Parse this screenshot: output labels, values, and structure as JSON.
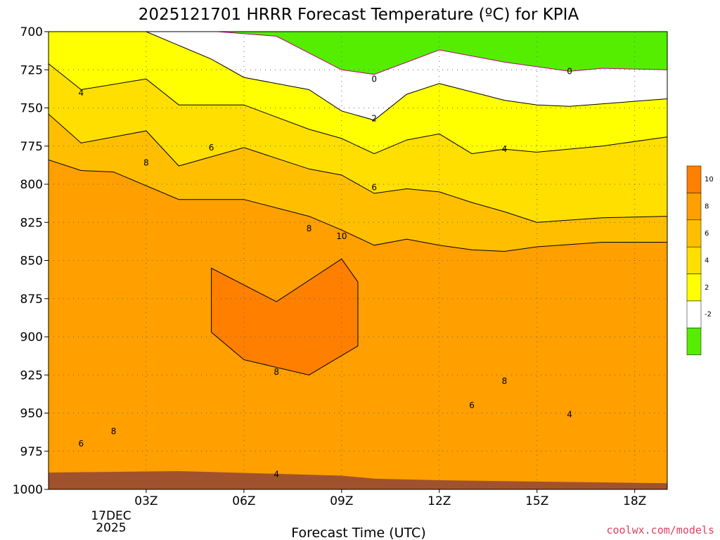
{
  "chart_data": {
    "type": "contour",
    "title": "2025121701 HRRR Forecast Temperature (ºC) for KPIA",
    "xlabel": "Forecast Time (UTC)",
    "ylabel": "",
    "credit": "coolwx.com/models",
    "x_range_hours": [
      0,
      19
    ],
    "x_ticks": [
      {
        "hour": 3,
        "label": "03Z"
      },
      {
        "hour": 6,
        "label": "06Z"
      },
      {
        "hour": 9,
        "label": "09Z"
      },
      {
        "hour": 12,
        "label": "12Z"
      },
      {
        "hour": 15,
        "label": "15Z"
      },
      {
        "hour": 18,
        "label": "18Z"
      }
    ],
    "date_label": [
      "17DEC",
      "2025"
    ],
    "y_range_hpa": [
      700,
      1000
    ],
    "y_ticks": [
      "700",
      "725",
      "750",
      "775",
      "800",
      "825",
      "850",
      "875",
      "900",
      "925",
      "950",
      "975",
      "1000"
    ],
    "legend_levels": [
      {
        "color": "#ff7f00",
        "label": "10"
      },
      {
        "color": "#ff9f00",
        "label": "8"
      },
      {
        "color": "#ffbf00",
        "label": "6"
      },
      {
        "color": "#ffdf00",
        "label": "4"
      },
      {
        "color": "#ffff00",
        "label": "2"
      },
      {
        "color": "#ffffff",
        "label": "-2"
      },
      {
        "color": "#55ee00",
        "label": ""
      }
    ],
    "contours": [
      {
        "level": 0,
        "color": "#c0007f",
        "points": [
          [
            5.2,
            700
          ],
          [
            7,
            703
          ],
          [
            9,
            725
          ],
          [
            10,
            728
          ],
          [
            12,
            712
          ],
          [
            14,
            720
          ],
          [
            16,
            726
          ],
          [
            17,
            724
          ],
          [
            19,
            725
          ]
        ]
      },
      {
        "level": 2,
        "color": "#000000",
        "points": [
          [
            0,
            700
          ],
          [
            3,
            700
          ],
          [
            5,
            718
          ],
          [
            6,
            730
          ],
          [
            8,
            738
          ],
          [
            9,
            752
          ],
          [
            10,
            758
          ],
          [
            11,
            741
          ],
          [
            12,
            734
          ],
          [
            14,
            745
          ],
          [
            15,
            748
          ],
          [
            16,
            749
          ],
          [
            19,
            744
          ]
        ]
      },
      {
        "level": 4,
        "color": "#000000",
        "points": [
          [
            0,
            721
          ],
          [
            1,
            738
          ],
          [
            3,
            731
          ],
          [
            4,
            748
          ],
          [
            6,
            748
          ],
          [
            8,
            764
          ],
          [
            9,
            770
          ],
          [
            10,
            780
          ],
          [
            11,
            771
          ],
          [
            12,
            767
          ],
          [
            13,
            780
          ],
          [
            14,
            777
          ],
          [
            15,
            779
          ],
          [
            17,
            775
          ],
          [
            19,
            769
          ]
        ]
      },
      {
        "level": 6,
        "color": "#000000",
        "points": [
          [
            0,
            754
          ],
          [
            1,
            773
          ],
          [
            3,
            765
          ],
          [
            4,
            788
          ],
          [
            6,
            776
          ],
          [
            8,
            790
          ],
          [
            9,
            794
          ],
          [
            10,
            806
          ],
          [
            11,
            803
          ],
          [
            12,
            805
          ],
          [
            13,
            812
          ],
          [
            14,
            818
          ],
          [
            15,
            825
          ],
          [
            17,
            822
          ],
          [
            19,
            821
          ]
        ]
      },
      {
        "level": 8,
        "color": "#000000",
        "points": [
          [
            0,
            784
          ],
          [
            1,
            791
          ],
          [
            2,
            792
          ],
          [
            4,
            810
          ],
          [
            6,
            810
          ],
          [
            8,
            821
          ],
          [
            9,
            830
          ],
          [
            10,
            840
          ],
          [
            11,
            836
          ],
          [
            12,
            840
          ],
          [
            13,
            843
          ],
          [
            14,
            844
          ],
          [
            15,
            841
          ],
          [
            17,
            838
          ],
          [
            19,
            838
          ]
        ]
      },
      {
        "level": 10,
        "color": "#000000",
        "points": [
          [
            9,
            849
          ],
          [
            9.5,
            864
          ],
          [
            9.5,
            906
          ],
          [
            8,
            925
          ],
          [
            6,
            915
          ],
          [
            5,
            897
          ],
          [
            5,
            855
          ],
          [
            7,
            877
          ],
          [
            9,
            849
          ]
        ]
      }
    ],
    "contour_labels": [
      {
        "text": "0",
        "hour": 10,
        "hpa": 731
      },
      {
        "text": "0",
        "hour": 16,
        "hpa": 726
      },
      {
        "text": "2",
        "hour": 10,
        "hpa": 757
      },
      {
        "text": "4",
        "hour": 1,
        "hpa": 740
      },
      {
        "text": "4",
        "hour": 14,
        "hpa": 777
      },
      {
        "text": "4",
        "hour": 16,
        "hpa": 951
      },
      {
        "text": "4",
        "hour": 7,
        "hpa": 990
      },
      {
        "text": "6",
        "hour": 5,
        "hpa": 776
      },
      {
        "text": "6",
        "hour": 10,
        "hpa": 802
      },
      {
        "text": "6",
        "hour": 13,
        "hpa": 945
      },
      {
        "text": "6",
        "hour": 1,
        "hpa": 970
      },
      {
        "text": "8",
        "hour": 3,
        "hpa": 786
      },
      {
        "text": "8",
        "hour": 8,
        "hpa": 829
      },
      {
        "text": "8",
        "hour": 7,
        "hpa": 923
      },
      {
        "text": "8",
        "hour": 14,
        "hpa": 929
      },
      {
        "text": "8",
        "hour": 2,
        "hpa": 962
      },
      {
        "text": "10",
        "hour": 9,
        "hpa": 834
      }
    ],
    "ground_color": "#a0522d",
    "ground_surface": [
      [
        0,
        989
      ],
      [
        4,
        988
      ],
      [
        9,
        991
      ],
      [
        10,
        993
      ],
      [
        12,
        994
      ],
      [
        19,
        996
      ]
    ]
  }
}
